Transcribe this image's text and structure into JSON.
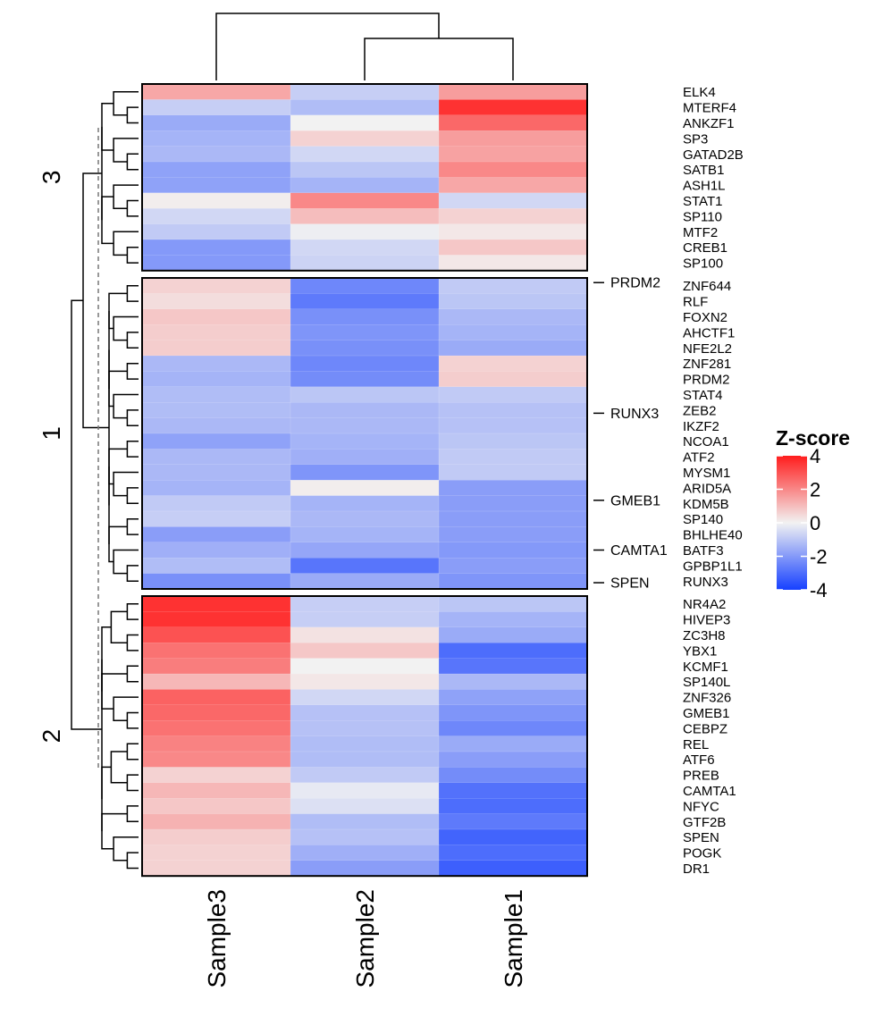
{
  "chart_data": {
    "type": "heatmap",
    "title": "",
    "columns": [
      "Sample3",
      "Sample2",
      "Sample1"
    ],
    "clusters": [
      {
        "label": "3",
        "rows": [
          {
            "gene": "ELK4",
            "values": [
              1.4,
              -0.8,
              1.6
            ]
          },
          {
            "gene": "MTERF4",
            "values": [
              -0.8,
              -1.2,
              3.6
            ]
          },
          {
            "gene": "ANKZF1",
            "values": [
              -1.6,
              0.0,
              2.6
            ]
          },
          {
            "gene": "SP3",
            "values": [
              -1.4,
              0.6,
              1.6
            ]
          },
          {
            "gene": "GATAD2B",
            "values": [
              -1.3,
              -0.6,
              1.5
            ]
          },
          {
            "gene": "SATB1",
            "values": [
              -1.8,
              -1.0,
              2.0
            ]
          },
          {
            "gene": "ASH1L",
            "values": [
              -1.8,
              -1.4,
              1.4
            ]
          },
          {
            "gene": "STAT1",
            "values": [
              0.1,
              2.0,
              -0.6
            ]
          },
          {
            "gene": "SP110",
            "values": [
              -0.6,
              1.0,
              0.6
            ]
          },
          {
            "gene": "MTF2",
            "values": [
              -0.9,
              -0.1,
              0.2
            ]
          },
          {
            "gene": "CREB1",
            "values": [
              -2.0,
              -0.6,
              0.8
            ]
          },
          {
            "gene": "SP100",
            "values": [
              -2.0,
              -0.7,
              0.2
            ]
          }
        ]
      },
      {
        "label": "1",
        "rows": [
          {
            "gene": "ZNF644",
            "values": [
              0.6,
              -2.4,
              -0.9
            ]
          },
          {
            "gene": "RLF",
            "values": [
              0.4,
              -2.7,
              -1.0
            ]
          },
          {
            "gene": "FOXN2",
            "values": [
              0.8,
              -2.2,
              -1.3
            ]
          },
          {
            "gene": "AHCTF1",
            "values": [
              0.7,
              -2.1,
              -1.4
            ]
          },
          {
            "gene": "NFE2L2",
            "values": [
              0.7,
              -2.2,
              -1.6
            ]
          },
          {
            "gene": "ZNF281",
            "values": [
              -1.3,
              -2.4,
              0.6
            ]
          },
          {
            "gene": "PRDM2",
            "values": [
              -1.4,
              -2.3,
              0.7
            ]
          },
          {
            "gene": "STAT4",
            "values": [
              -1.2,
              -1.0,
              -0.9
            ]
          },
          {
            "gene": "ZEB2",
            "values": [
              -1.2,
              -1.3,
              -1.1
            ]
          },
          {
            "gene": "IKZF2",
            "values": [
              -1.3,
              -1.3,
              -1.1
            ]
          },
          {
            "gene": "NCOA1",
            "values": [
              -1.8,
              -1.4,
              -1.0
            ]
          },
          {
            "gene": "ATF2",
            "values": [
              -1.3,
              -1.5,
              -0.9
            ]
          },
          {
            "gene": "MYSM1",
            "values": [
              -1.3,
              -2.1,
              -0.9
            ]
          },
          {
            "gene": "ARID5A",
            "values": [
              -1.4,
              0.1,
              -1.9
            ]
          },
          {
            "gene": "KDM5B",
            "values": [
              -0.9,
              -1.4,
              -1.9
            ]
          },
          {
            "gene": "SP140",
            "values": [
              -0.8,
              -1.3,
              -1.9
            ]
          },
          {
            "gene": "BHLHE40",
            "values": [
              -1.9,
              -1.4,
              -1.9
            ]
          },
          {
            "gene": "BATF3",
            "values": [
              -1.5,
              -1.7,
              -2.0
            ]
          },
          {
            "gene": "GPBP1L1",
            "values": [
              -1.2,
              -2.8,
              -1.9
            ]
          },
          {
            "gene": "RUNX3",
            "values": [
              -2.2,
              -1.6,
              -2.1
            ]
          }
        ]
      },
      {
        "label": "2",
        "rows": [
          {
            "gene": "NR4A2",
            "values": [
              3.6,
              -0.8,
              -1.0
            ]
          },
          {
            "gene": "HIVEP3",
            "values": [
              3.6,
              -0.8,
              -1.4
            ]
          },
          {
            "gene": "ZC3H8",
            "values": [
              3.0,
              0.3,
              -1.6
            ]
          },
          {
            "gene": "YBX1",
            "values": [
              2.4,
              0.8,
              -3.0
            ]
          },
          {
            "gene": "KCMF1",
            "values": [
              2.2,
              0.0,
              -2.8
            ]
          },
          {
            "gene": "SP140L",
            "values": [
              1.1,
              0.2,
              -1.3
            ]
          },
          {
            "gene": "ZNF326",
            "values": [
              2.7,
              -0.6,
              -1.8
            ]
          },
          {
            "gene": "GMEB1",
            "values": [
              2.6,
              -1.1,
              -2.1
            ]
          },
          {
            "gene": "CEBPZ",
            "values": [
              2.4,
              -1.1,
              -2.4
            ]
          },
          {
            "gene": "REL",
            "values": [
              2.1,
              -1.2,
              -1.6
            ]
          },
          {
            "gene": "ATF6",
            "values": [
              2.0,
              -1.2,
              -1.9
            ]
          },
          {
            "gene": "PREB",
            "values": [
              0.6,
              -0.9,
              -2.3
            ]
          },
          {
            "gene": "CAMTA1",
            "values": [
              1.1,
              -0.2,
              -2.9
            ]
          },
          {
            "gene": "NFYC",
            "values": [
              0.8,
              -0.4,
              -3.0
            ]
          },
          {
            "gene": "GTF2B",
            "values": [
              1.2,
              -1.2,
              -2.7
            ]
          },
          {
            "gene": "SPEN",
            "values": [
              0.7,
              -1.1,
              -3.2
            ]
          },
          {
            "gene": "POGK",
            "values": [
              0.6,
              -1.5,
              -3.0
            ]
          },
          {
            "gene": "DR1",
            "values": [
              0.6,
              -1.9,
              -3.3
            ]
          }
        ]
      }
    ],
    "highlighted_genes": [
      "PRDM2",
      "RUNX3",
      "GMEB1",
      "CAMTA1",
      "SPEN"
    ],
    "legend": {
      "title": "Z-score",
      "ticks": [
        4,
        2,
        0,
        -2,
        -4
      ],
      "tick_labels": [
        "4",
        "2",
        "0",
        "-2",
        "-4"
      ],
      "range": [
        -4,
        4
      ],
      "colors": {
        "low": "#1640ff",
        "mid": "#f2f2f2",
        "high": "#ff1d1d"
      }
    }
  }
}
